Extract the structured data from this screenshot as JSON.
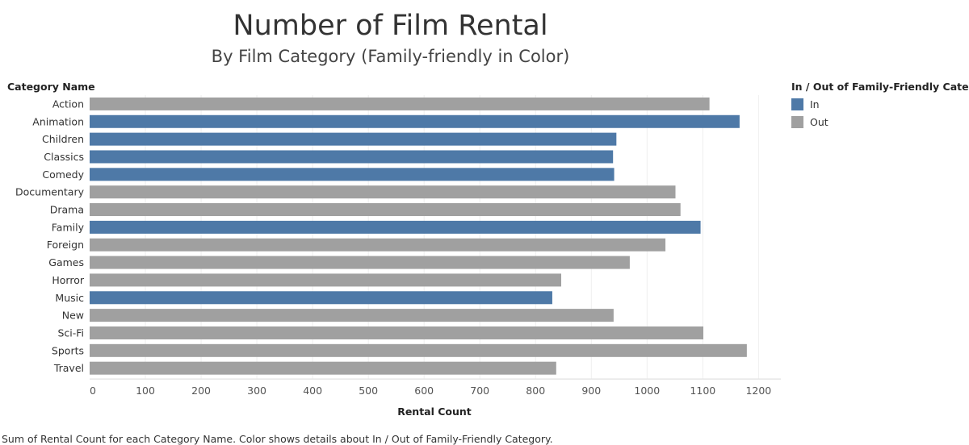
{
  "header": {
    "title": "Number of Film Rental",
    "subtitle": "By Film Category (Family-friendly in Color)",
    "row_header": "Category Name"
  },
  "legend": {
    "title": "In / Out of Family-Friendly Category",
    "items": [
      {
        "label": "In",
        "color": "#4e79a7"
      },
      {
        "label": "Out",
        "color": "#a0a0a0"
      }
    ]
  },
  "caption": "Sum of Rental Count for each Category Name.  Color shows details about In / Out of Family-Friendly Category.",
  "chart_data": {
    "type": "bar",
    "orientation": "horizontal",
    "xlabel": "Rental Count",
    "ylabel": "Category Name",
    "xlim": [
      0,
      1200
    ],
    "xticks": [
      0,
      100,
      200,
      300,
      400,
      500,
      600,
      700,
      800,
      900,
      1000,
      1100,
      1200
    ],
    "grid": true,
    "legend_position": "top-right",
    "categories": [
      "Action",
      "Animation",
      "Children",
      "Classics",
      "Comedy",
      "Documentary",
      "Drama",
      "Family",
      "Foreign",
      "Games",
      "Horror",
      "Music",
      "New",
      "Sci-Fi",
      "Sports",
      "Travel"
    ],
    "values": [
      1112,
      1166,
      945,
      939,
      941,
      1051,
      1060,
      1096,
      1033,
      969,
      846,
      830,
      940,
      1101,
      1179,
      837
    ],
    "groups": [
      "Out",
      "In",
      "In",
      "In",
      "In",
      "Out",
      "Out",
      "In",
      "Out",
      "Out",
      "Out",
      "In",
      "Out",
      "Out",
      "Out",
      "Out"
    ],
    "colors": {
      "In": "#4e79a7",
      "Out": "#a0a0a0"
    }
  }
}
